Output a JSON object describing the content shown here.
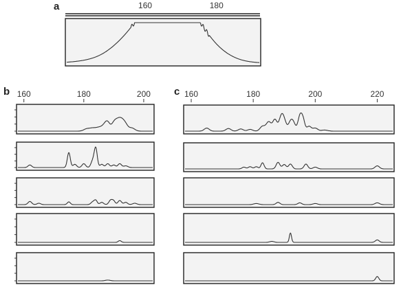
{
  "panels": [
    {
      "letter": "a"
    },
    {
      "letter": "b"
    },
    {
      "letter": "c"
    }
  ],
  "chart_data": [
    {
      "panel": "a",
      "type": "line",
      "xlim": [
        138,
        192
      ],
      "ticks": [
        160,
        180
      ],
      "tick_labels": [
        "160",
        "180"
      ],
      "traces": [
        {
          "peaks": [
            [
              144,
              0.03,
              6
            ],
            [
              150,
              0.1,
              5
            ],
            [
              153,
              0.2,
              4
            ],
            [
              156,
              0.32,
              3.5
            ],
            [
              159,
              0.45,
              3
            ],
            [
              162,
              0.58,
              3
            ],
            [
              165,
              0.66,
              3
            ],
            [
              167,
              0.7,
              3
            ],
            [
              169,
              0.66,
              3
            ],
            [
              172,
              0.55,
              3
            ],
            [
              175,
              0.4,
              3
            ],
            [
              178,
              0.25,
              3.5
            ],
            [
              181,
              0.12,
              4
            ],
            [
              184,
              0.04,
              5
            ]
          ],
          "ripple": {
            "start": 156,
            "end": 178,
            "period": 1,
            "amp": 0.05
          }
        }
      ]
    },
    {
      "panel": "b",
      "type": "line",
      "xlim": [
        158,
        203
      ],
      "ticks": [
        160,
        180,
        200
      ],
      "tick_labels": [
        "160",
        "180",
        "200"
      ],
      "traces": [
        {
          "peaks": [
            [
              181,
              0.1,
              1
            ],
            [
              183,
              0.12,
              1
            ],
            [
              185,
              0.14,
              1
            ],
            [
              187,
              0.24,
              1
            ],
            [
              188,
              0.28,
              0.8
            ],
            [
              190,
              0.3,
              0.8
            ],
            [
              191,
              0.26,
              0.8
            ],
            [
              192,
              0.34,
              0.8
            ],
            [
              193,
              0.28,
              0.8
            ],
            [
              194,
              0.22,
              0.8
            ],
            [
              196,
              0.14,
              1
            ]
          ]
        },
        {
          "peaks": [
            [
              162,
              0.12,
              0.6
            ],
            [
              175,
              0.7,
              0.5
            ],
            [
              177,
              0.15,
              0.6
            ],
            [
              180,
              0.18,
              0.6
            ],
            [
              183,
              0.32,
              0.6
            ],
            [
              184,
              0.88,
              0.5
            ],
            [
              186,
              0.15,
              0.6
            ],
            [
              188,
              0.18,
              0.6
            ],
            [
              190,
              0.12,
              0.6
            ],
            [
              192,
              0.18,
              0.6
            ],
            [
              194,
              0.08,
              0.7
            ]
          ]
        },
        {
          "peaks": [
            [
              162,
              0.14,
              0.6
            ],
            [
              165,
              0.06,
              0.6
            ],
            [
              175,
              0.12,
              0.5
            ],
            [
              183,
              0.12,
              0.6
            ],
            [
              184,
              0.18,
              0.5
            ],
            [
              186,
              0.1,
              0.6
            ],
            [
              189,
              0.2,
              0.6
            ],
            [
              190,
              0.14,
              0.5
            ],
            [
              192,
              0.18,
              0.6
            ],
            [
              194,
              0.1,
              0.6
            ],
            [
              197,
              0.06,
              0.7
            ]
          ]
        },
        {
          "peaks": [
            [
              192,
              0.07,
              0.5
            ]
          ]
        },
        {
          "peaks": [
            [
              188,
              0.03,
              0.8
            ]
          ]
        }
      ]
    },
    {
      "panel": "c",
      "type": "line",
      "xlim": [
        158,
        225
      ],
      "ticks": [
        160,
        180,
        200,
        220
      ],
      "tick_labels": [
        "160",
        "180",
        "200",
        "220"
      ],
      "traces": [
        {
          "peaks": [
            [
              165,
              0.14,
              0.8
            ],
            [
              172,
              0.12,
              0.8
            ],
            [
              176,
              0.1,
              0.8
            ],
            [
              179,
              0.08,
              0.8
            ],
            [
              183,
              0.22,
              0.8
            ],
            [
              185,
              0.42,
              0.8
            ],
            [
              187,
              0.52,
              0.7
            ],
            [
              189,
              0.6,
              0.7
            ],
            [
              190,
              0.42,
              0.7
            ],
            [
              192,
              0.38,
              0.7
            ],
            [
              193,
              0.32,
              0.7
            ],
            [
              195,
              0.62,
              0.6
            ],
            [
              196,
              0.55,
              0.6
            ],
            [
              198,
              0.22,
              0.7
            ],
            [
              200,
              0.14,
              0.8
            ],
            [
              203,
              0.05,
              1
            ]
          ]
        },
        {
          "peaks": [
            [
              177,
              0.08,
              0.6
            ],
            [
              179,
              0.1,
              0.6
            ],
            [
              181,
              0.1,
              0.6
            ],
            [
              183,
              0.28,
              0.5
            ],
            [
              188,
              0.3,
              0.6
            ],
            [
              190,
              0.2,
              0.6
            ],
            [
              192,
              0.22,
              0.6
            ],
            [
              197,
              0.22,
              0.6
            ],
            [
              200,
              0.08,
              0.7
            ],
            [
              220,
              0.14,
              0.7
            ]
          ]
        },
        {
          "peaks": [
            [
              181,
              0.05,
              0.8
            ],
            [
              188,
              0.1,
              0.6
            ],
            [
              195,
              0.08,
              0.6
            ],
            [
              200,
              0.05,
              0.7
            ],
            [
              220,
              0.08,
              0.7
            ]
          ]
        },
        {
          "peaks": [
            [
              186,
              0.04,
              0.7
            ],
            [
              192,
              0.38,
              0.35
            ],
            [
              220,
              0.1,
              0.6
            ]
          ]
        },
        {
          "peaks": [
            [
              220,
              0.18,
              0.5
            ]
          ]
        }
      ]
    }
  ]
}
